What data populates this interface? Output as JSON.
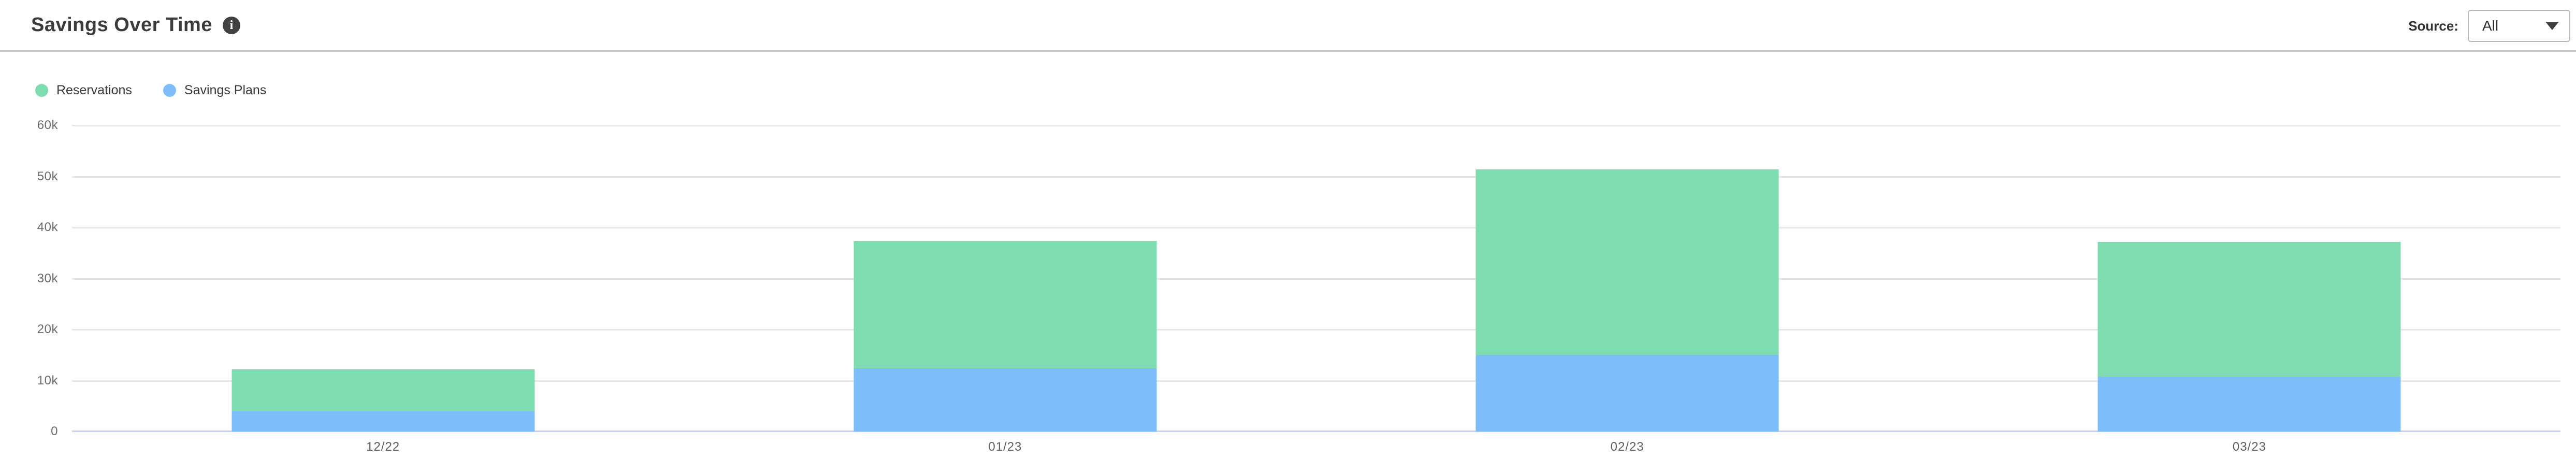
{
  "header": {
    "title": "Savings Over Time",
    "source_label": "Source:",
    "source_value": "All"
  },
  "legend": [
    {
      "label": "Reservations",
      "color": "#7ddcb0"
    },
    {
      "label": "Savings Plans",
      "color": "#7dbdfb"
    }
  ],
  "chart_data": {
    "type": "bar",
    "stacked": true,
    "title": "Savings Over Time",
    "categories": [
      "12/22",
      "01/23",
      "02/23",
      "03/23"
    ],
    "series": [
      {
        "name": "Savings Plans",
        "color": "#7dbdfb",
        "values": [
          4000,
          12400,
          15000,
          10800
        ]
      },
      {
        "name": "Reservations",
        "color": "#7ddcb0",
        "values": [
          8200,
          25000,
          36400,
          26400
        ]
      }
    ],
    "totals": [
      12200,
      37400,
      51400,
      37200
    ],
    "xlabel": "",
    "ylabel": "",
    "ylim": [
      0,
      60000
    ],
    "yticks": [
      {
        "value": 60000,
        "label": "60k"
      },
      {
        "value": 50000,
        "label": "50k"
      },
      {
        "value": 40000,
        "label": "40k"
      },
      {
        "value": 30000,
        "label": "30k"
      },
      {
        "value": 20000,
        "label": "20k"
      },
      {
        "value": 10000,
        "label": "10k"
      },
      {
        "value": 0,
        "label": "0"
      }
    ],
    "grid": true,
    "legend_position": "top-left"
  },
  "colors": {
    "grid": "#e7e7e7",
    "zero_axis": "#c9cfec",
    "header_divider": "#c8c8c8",
    "title_text": "#3b3b3b",
    "tick_text": "#696970"
  }
}
